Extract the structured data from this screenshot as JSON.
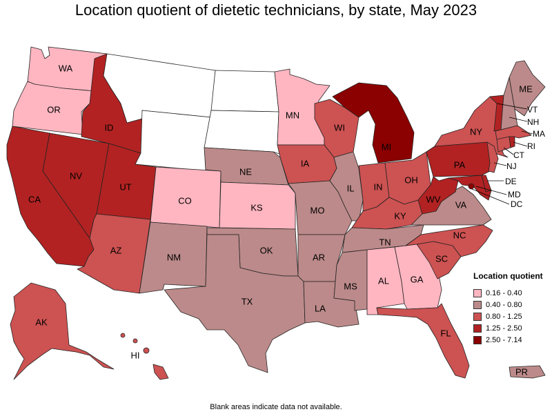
{
  "title": "Location quotient of dietetic technicians, by state, May 2023",
  "note": "Blank areas indicate data not available.",
  "legend": {
    "title": "Location quotient",
    "items": [
      {
        "label": "0.16 - 0.40",
        "color": "#ffb6c1"
      },
      {
        "label": "0.40 - 0.80",
        "color": "#bc8a8a"
      },
      {
        "label": "0.80 - 1.25",
        "color": "#cd5252"
      },
      {
        "label": "1.25 - 2.50",
        "color": "#b22222"
      },
      {
        "label": "2.50 - 7.14",
        "color": "#8b0000"
      }
    ]
  },
  "colors": {
    "c1": "#ffb6c1",
    "c2": "#bc8a8a",
    "c3": "#cd5252",
    "c4": "#b22222",
    "c5": "#8b0000",
    "na": "#ffffff"
  },
  "states": {
    "WA": {
      "label": "WA",
      "class": "c1"
    },
    "OR": {
      "label": "OR",
      "class": "c1"
    },
    "CA": {
      "label": "CA",
      "class": "c4"
    },
    "NV": {
      "label": "NV",
      "class": "c4"
    },
    "ID": {
      "label": "ID",
      "class": "c4"
    },
    "MT": {
      "label": "",
      "class": "na"
    },
    "WY": {
      "label": "",
      "class": "na"
    },
    "UT": {
      "label": "UT",
      "class": "c4"
    },
    "AZ": {
      "label": "AZ",
      "class": "c3"
    },
    "CO": {
      "label": "CO",
      "class": "c1"
    },
    "NM": {
      "label": "NM",
      "class": "c2"
    },
    "ND": {
      "label": "",
      "class": "na"
    },
    "SD": {
      "label": "",
      "class": "na"
    },
    "NE": {
      "label": "NE",
      "class": "c2"
    },
    "KS": {
      "label": "KS",
      "class": "c1"
    },
    "OK": {
      "label": "OK",
      "class": "c2"
    },
    "TX": {
      "label": "TX",
      "class": "c2"
    },
    "MN": {
      "label": "MN",
      "class": "c1"
    },
    "IA": {
      "label": "IA",
      "class": "c3"
    },
    "MO": {
      "label": "MO",
      "class": "c2"
    },
    "AR": {
      "label": "AR",
      "class": "c2"
    },
    "LA": {
      "label": "LA",
      "class": "c2"
    },
    "WI": {
      "label": "WI",
      "class": "c3"
    },
    "IL": {
      "label": "IL",
      "class": "c2"
    },
    "MI": {
      "label": "MI",
      "class": "c5"
    },
    "IN": {
      "label": "IN",
      "class": "c3"
    },
    "OH": {
      "label": "OH",
      "class": "c3"
    },
    "KY": {
      "label": "KY",
      "class": "c3"
    },
    "TN": {
      "label": "TN",
      "class": "c2"
    },
    "MS": {
      "label": "MS",
      "class": "c2"
    },
    "AL": {
      "label": "AL",
      "class": "c1"
    },
    "GA": {
      "label": "GA",
      "class": "c1"
    },
    "FL": {
      "label": "FL",
      "class": "c3"
    },
    "SC": {
      "label": "SC",
      "class": "c3"
    },
    "NC": {
      "label": "NC",
      "class": "c3"
    },
    "VA": {
      "label": "VA",
      "class": "c2"
    },
    "WV": {
      "label": "WV",
      "class": "c4"
    },
    "PA": {
      "label": "PA",
      "class": "c4"
    },
    "NY": {
      "label": "NY",
      "class": "c3"
    },
    "VT": {
      "label": "VT",
      "class": "c4"
    },
    "NH": {
      "label": "NH",
      "class": "c2"
    },
    "ME": {
      "label": "ME",
      "class": "c2"
    },
    "MA": {
      "label": "MA",
      "class": "c3"
    },
    "RI": {
      "label": "RI",
      "class": "c4"
    },
    "CT": {
      "label": "CT",
      "class": "c3"
    },
    "NJ": {
      "label": "NJ",
      "class": "c3"
    },
    "DE": {
      "label": "DE",
      "class": "c4"
    },
    "MD": {
      "label": "MD",
      "class": "c4"
    },
    "DC": {
      "label": "DC",
      "class": "c5"
    },
    "AK": {
      "label": "AK",
      "class": "c3"
    },
    "HI": {
      "label": "HI",
      "class": "c3"
    },
    "PR": {
      "label": "PR",
      "class": "c2"
    }
  }
}
